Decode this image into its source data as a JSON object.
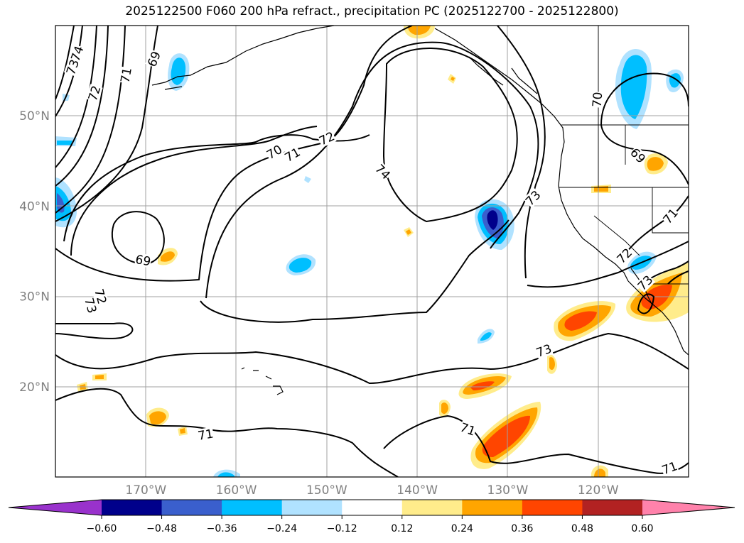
{
  "chart_data": {
    "type": "heatmap",
    "title": "2025122500 F060 200 hPa refract., precipitation PC (2025122700 - 2025122800)",
    "map": {
      "lon_range": [
        -180,
        -110
      ],
      "lat_range": [
        10,
        60
      ],
      "lat_ticks": [
        {
          "value": 20,
          "label": "20°N"
        },
        {
          "value": 30,
          "label": "30°N"
        },
        {
          "value": 40,
          "label": "40°N"
        },
        {
          "value": 50,
          "label": "50°N"
        }
      ],
      "lon_ticks": [
        {
          "value": -170,
          "label": "170°W"
        },
        {
          "value": -160,
          "label": "160°W"
        },
        {
          "value": -150,
          "label": "150°W"
        },
        {
          "value": -140,
          "label": "140°W"
        },
        {
          "value": -130,
          "label": "130°W"
        },
        {
          "value": -120,
          "label": "120°W"
        }
      ],
      "grid": true
    },
    "contours": {
      "field": "200 hPa refractivity",
      "levels": [
        69,
        70,
        71,
        72,
        73,
        74
      ],
      "labels": [
        {
          "text": "74",
          "lon": -177.6,
          "lat": 56.9,
          "angle": -70
        },
        {
          "text": "73",
          "lon": -178.1,
          "lat": 55.4,
          "angle": -70
        },
        {
          "text": "72",
          "lon": -175.7,
          "lat": 52.5,
          "angle": -72
        },
        {
          "text": "71",
          "lon": -172.2,
          "lat": 54.5,
          "angle": -80
        },
        {
          "text": "69",
          "lon": -169.1,
          "lat": 56.3,
          "angle": -68
        },
        {
          "text": "70",
          "lon": -155.8,
          "lat": 46.0,
          "angle": -30
        },
        {
          "text": "71",
          "lon": -153.8,
          "lat": 45.7,
          "angle": -30
        },
        {
          "text": "72",
          "lon": -150.0,
          "lat": 47.5,
          "angle": -25
        },
        {
          "text": "74",
          "lon": -143.8,
          "lat": 43.8,
          "angle": 45
        },
        {
          "text": "73",
          "lon": -127.2,
          "lat": 40.9,
          "angle": -45
        },
        {
          "text": "70",
          "lon": -120.1,
          "lat": 51.8,
          "angle": -85
        },
        {
          "text": "69",
          "lon": -170.3,
          "lat": 34.0,
          "angle": 10
        },
        {
          "text": "72",
          "lon": -175.0,
          "lat": 30.0,
          "angle": 75
        },
        {
          "text": "73",
          "lon": -176.1,
          "lat": 29.0,
          "angle": 75
        },
        {
          "text": "73",
          "lon": -126.0,
          "lat": 24.0,
          "angle": -20
        },
        {
          "text": "71",
          "lon": -163.4,
          "lat": 14.7,
          "angle": -10
        },
        {
          "text": "71",
          "lon": -134.4,
          "lat": 15.3,
          "angle": 20
        },
        {
          "text": "72",
          "lon": -117.1,
          "lat": 34.5,
          "angle": -45
        },
        {
          "text": "73",
          "lon": -114.8,
          "lat": 31.5,
          "angle": -45
        },
        {
          "text": "69",
          "lon": -115.6,
          "lat": 45.6,
          "angle": 45
        },
        {
          "text": "71",
          "lon": -112.0,
          "lat": 38.9,
          "angle": -50
        },
        {
          "text": "71",
          "lon": -112.1,
          "lat": 11.0,
          "angle": -20
        }
      ]
    },
    "colorbar": {
      "field": "precipitation PC",
      "extend": "both",
      "ticks": [
        "−0.60",
        "−0.48",
        "−0.36",
        "−0.24",
        "−0.12",
        "0.12",
        "0.24",
        "0.36",
        "0.48",
        "0.60"
      ],
      "tick_values": [
        -0.6,
        -0.48,
        -0.36,
        -0.24,
        -0.12,
        0.12,
        0.24,
        0.36,
        0.48,
        0.6
      ],
      "colors": [
        "#9932cc",
        "#00008b",
        "#3a5fcd",
        "#00bfff",
        "#b0e2ff",
        "#ffffff",
        "#ffec8b",
        "#ffa500",
        "#ff4500",
        "#b22222",
        "#ff82ab"
      ]
    }
  }
}
